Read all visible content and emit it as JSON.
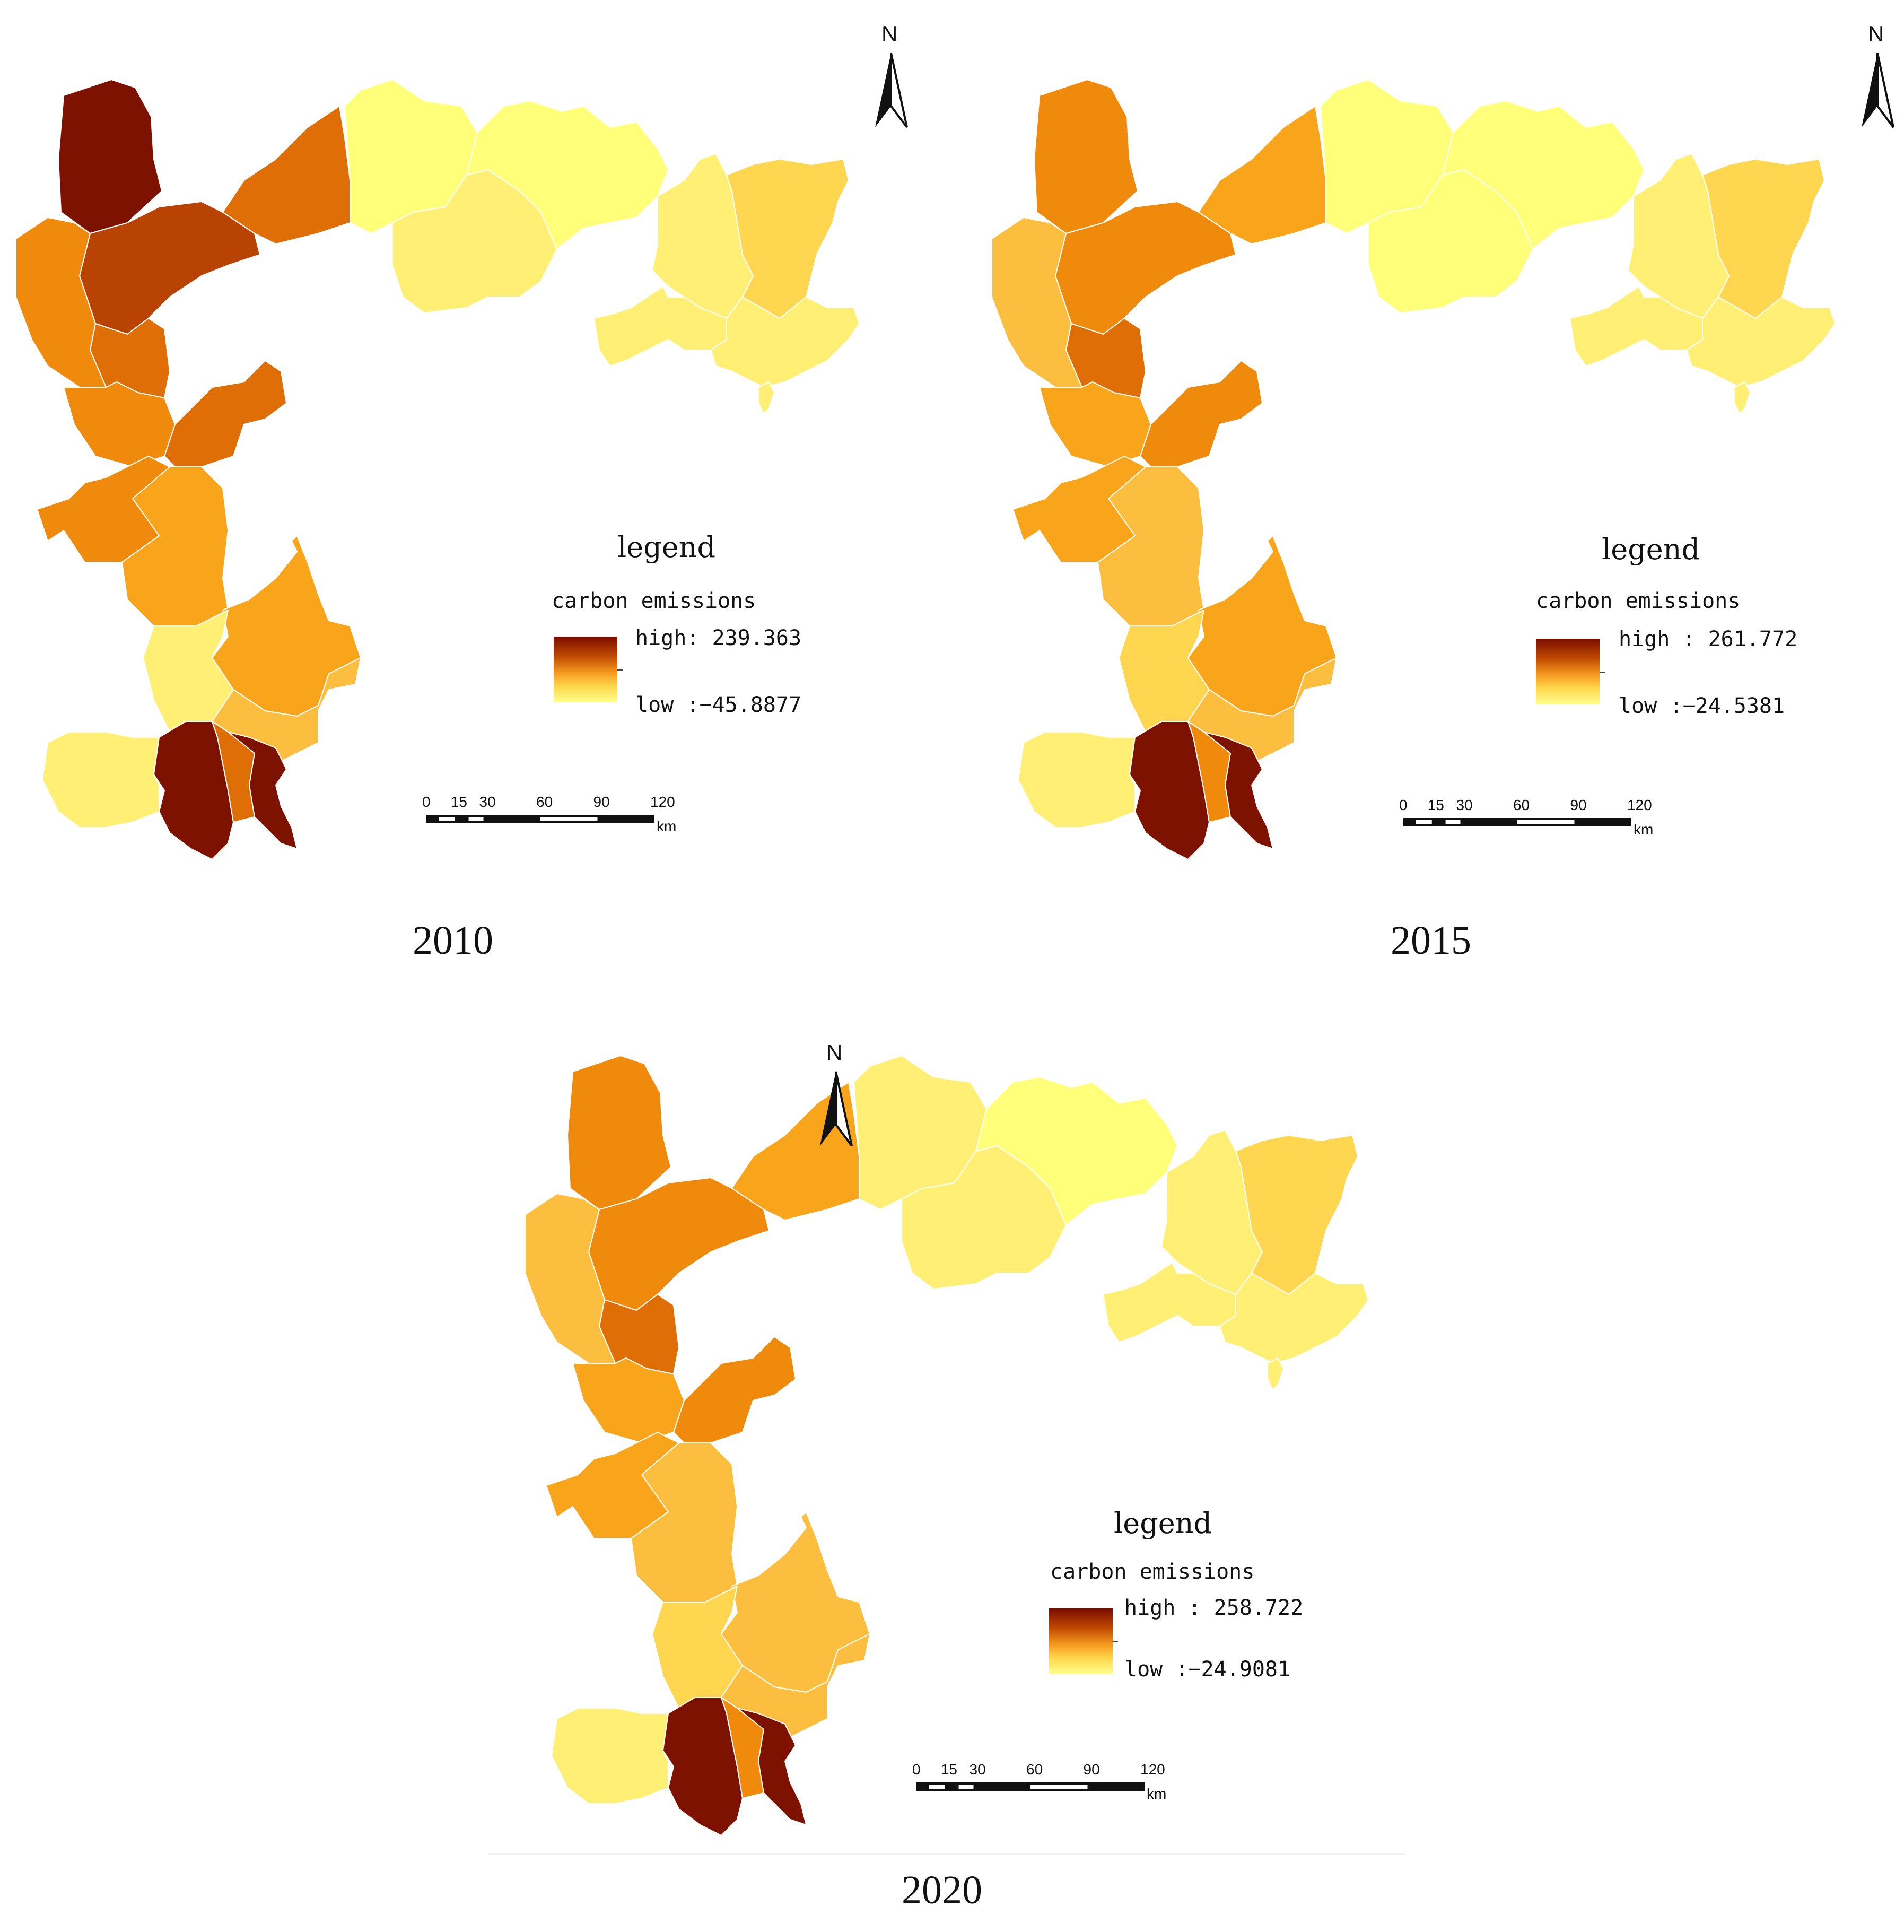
{
  "colors": {
    "class1": "#ffff7a",
    "class2": "#fff075",
    "class3": "#ffd650",
    "class4": "#fbbe3e",
    "class5": "#f9a51c",
    "class6": "#ef8a0c",
    "class7": "#de6e05",
    "class8": "#b84302",
    "class9": "#7d1201"
  },
  "legend_title": "legend",
  "legend_subtitle": "carbon emissions",
  "north_label": "N",
  "scale": {
    "ticks": [
      "0",
      "15",
      "30",
      "60",
      "90",
      "120"
    ],
    "unit": "km"
  },
  "panels": [
    {
      "year": "2010",
      "legend_high": "high: 239.363",
      "legend_low": "low :−45.8877",
      "region_classes": [
        9,
        8,
        7,
        6,
        7,
        6,
        7,
        6,
        5,
        5,
        2,
        4,
        2,
        9,
        7,
        9,
        1,
        2,
        1,
        2,
        3,
        2,
        2,
        2
      ]
    },
    {
      "year": "2015",
      "legend_high": "high : 261.772",
      "legend_low": "low :−24.5381",
      "region_classes": [
        6,
        6,
        5,
        4,
        7,
        5,
        6,
        5,
        4,
        5,
        3,
        4,
        2,
        9,
        6,
        9,
        1,
        1,
        1,
        2,
        3,
        2,
        2,
        2
      ]
    },
    {
      "year": "2020",
      "legend_high": "high : 258.722",
      "legend_low": "low :−24.9081",
      "region_classes": [
        6,
        6,
        5,
        4,
        7,
        5,
        6,
        5,
        4,
        4,
        3,
        4,
        2,
        9,
        6,
        9,
        2,
        2,
        1,
        2,
        3,
        2,
        2,
        2
      ]
    }
  ]
}
